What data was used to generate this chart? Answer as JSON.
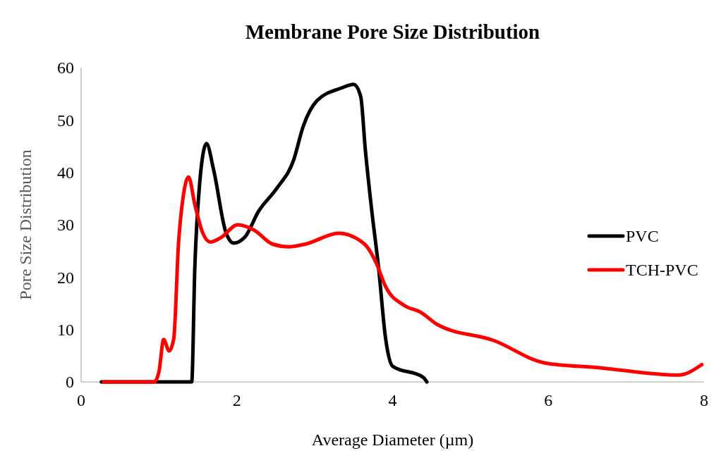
{
  "chart_data": {
    "type": "line",
    "title": "Membrane Pore Size Distribution",
    "xlabel": "Average Diameter (µm)",
    "ylabel": "Pore Size Distribution",
    "xlim": [
      0,
      8
    ],
    "xticks": [
      0,
      2,
      4,
      6,
      8
    ],
    "ylim": [
      0,
      60
    ],
    "yticks": [
      0,
      10,
      20,
      30,
      40,
      50,
      60
    ],
    "grid": false,
    "legend": "right",
    "marker": "none",
    "line_style": "solid",
    "series": [
      {
        "name": "PVC",
        "color": "#000000",
        "x": [
          0.26,
          1.34,
          1.42,
          1.46,
          1.52,
          1.61,
          1.7,
          1.86,
          1.96,
          2.1,
          2.28,
          2.52,
          2.73,
          2.85,
          3.03,
          3.34,
          3.5,
          3.59,
          3.65,
          3.73,
          3.82,
          3.91,
          4.0,
          4.39,
          4.44
        ],
        "values": [
          0,
          0,
          0,
          21.8,
          37.5,
          45.5,
          40.6,
          28.5,
          26.5,
          27.6,
          32.6,
          37.1,
          42.4,
          48.7,
          53.7,
          56.1,
          56.8,
          54.5,
          44.3,
          33,
          21.8,
          8.3,
          3,
          0.9,
          0
        ]
      },
      {
        "name": "TCH-PVC",
        "color": "#ff0000",
        "x": [
          0.29,
          0.94,
          1.0,
          1.06,
          1.13,
          1.19,
          1.25,
          1.31,
          1.38,
          1.46,
          1.56,
          1.66,
          1.8,
          2.01,
          2.22,
          2.46,
          2.67,
          2.88,
          3.31,
          3.64,
          3.79,
          3.91,
          4.15,
          4.36,
          4.57,
          5.3,
          5.96,
          6.66,
          7.67,
          7.97
        ],
        "values": [
          0,
          0,
          2,
          8.1,
          5.9,
          8.3,
          26.3,
          35.3,
          39.1,
          33.9,
          28.5,
          26.7,
          27.6,
          30,
          29,
          26.3,
          25.8,
          26.3,
          28.4,
          26.3,
          22.7,
          18.2,
          14.6,
          13.3,
          11,
          7.9,
          3.6,
          2.7,
          1.3,
          3.3
        ]
      }
    ]
  }
}
